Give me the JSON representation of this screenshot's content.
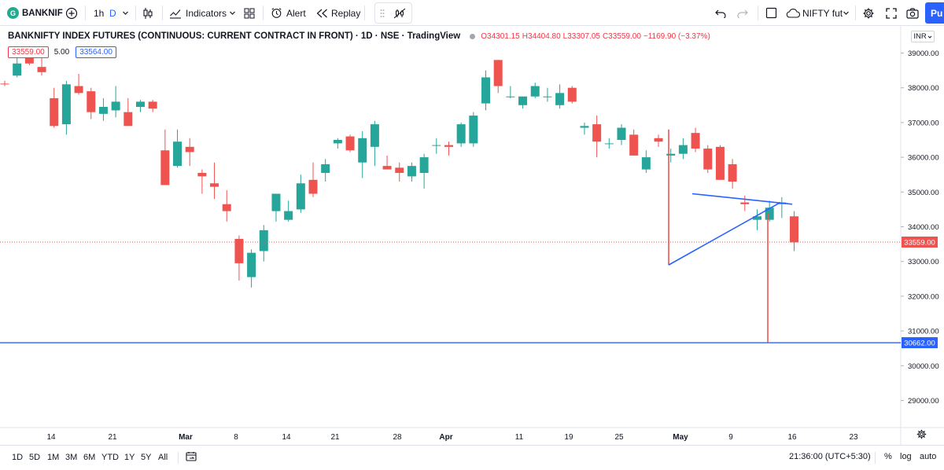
{
  "toolbar": {
    "symbol": "BANKNIF",
    "logo_letter": "G",
    "interval": "1h",
    "interval_type": "D",
    "indicators_label": "Indicators",
    "alert_label": "Alert",
    "replay_label": "Replay",
    "compare_symbol": "NIFTY fut",
    "publish_label": "Pu"
  },
  "legend": {
    "title": "BANKNIFTY INDEX FUTURES (CONTINUOUS: CURRENT CONTRACT IN FRONT) · 1D · NSE · TradingView",
    "open": "O34301.15",
    "high": "H34404.80",
    "low": "L33307.05",
    "close": "C33559.00",
    "change": "−1169.90 (−3.37%)",
    "sell_price": "33559.00",
    "spread": "5.00",
    "buy_price": "33564.00"
  },
  "currency": "INR",
  "bottom": {
    "ranges": [
      "1D",
      "5D",
      "1M",
      "3M",
      "6M",
      "YTD",
      "1Y",
      "5Y",
      "All"
    ],
    "clock": "21:36:00 (UTC+5:30)",
    "percent_label": "%",
    "log_label": "log",
    "auto_label": "auto"
  },
  "colors": {
    "up": "#26a69a",
    "down": "#ef5350",
    "drawing": "#2962ff",
    "accent": "#2962ff"
  },
  "chart_data": {
    "type": "candlestick",
    "symbol": "BANKNIFTY1!",
    "exchange": "NSE",
    "timeframe": "1D",
    "y_axis": {
      "ticks": [
        "39000.00",
        "38000.00",
        "37000.00",
        "36000.00",
        "35000.00",
        "34000.00",
        "33000.00",
        "32000.00",
        "31000.00",
        "30000.00",
        "29000.00"
      ],
      "range": [
        28400,
        39400
      ]
    },
    "x_axis": {
      "labels": [
        {
          "text": "14",
          "bold": false
        },
        {
          "text": "21",
          "bold": false
        },
        {
          "text": "Mar",
          "bold": true
        },
        {
          "text": "8",
          "bold": false
        },
        {
          "text": "14",
          "bold": false
        },
        {
          "text": "21",
          "bold": false
        },
        {
          "text": "28",
          "bold": false
        },
        {
          "text": "Apr",
          "bold": true
        },
        {
          "text": "11",
          "bold": false
        },
        {
          "text": "19",
          "bold": false
        },
        {
          "text": "25",
          "bold": false
        },
        {
          "text": "May",
          "bold": true
        },
        {
          "text": "9",
          "bold": false
        },
        {
          "text": "16",
          "bold": false
        },
        {
          "text": "23",
          "bold": false
        }
      ]
    },
    "candles": [
      {
        "o": 38120,
        "h": 38200,
        "l": 38050,
        "c": 38100
      },
      {
        "o": 38350,
        "h": 39000,
        "l": 38300,
        "c": 38700
      },
      {
        "o": 39050,
        "h": 39200,
        "l": 38650,
        "c": 38700
      },
      {
        "o": 38600,
        "h": 38850,
        "l": 38350,
        "c": 38450
      },
      {
        "o": 37700,
        "h": 38000,
        "l": 36850,
        "c": 36900
      },
      {
        "o": 36950,
        "h": 38200,
        "l": 36650,
        "c": 38100
      },
      {
        "o": 38050,
        "h": 38400,
        "l": 37800,
        "c": 37850
      },
      {
        "o": 37900,
        "h": 38000,
        "l": 37100,
        "c": 37300
      },
      {
        "o": 37250,
        "h": 37700,
        "l": 37050,
        "c": 37450
      },
      {
        "o": 37350,
        "h": 38050,
        "l": 37150,
        "c": 37600
      },
      {
        "o": 37300,
        "h": 37700,
        "l": 36900,
        "c": 36900
      },
      {
        "o": 37450,
        "h": 37650,
        "l": 37300,
        "c": 37600
      },
      {
        "o": 37600,
        "h": 37650,
        "l": 37300,
        "c": 37400
      },
      {
        "o": 36200,
        "h": 36800,
        "l": 35200,
        "c": 35200
      },
      {
        "o": 35750,
        "h": 36800,
        "l": 35700,
        "c": 36450
      },
      {
        "o": 36300,
        "h": 36550,
        "l": 35750,
        "c": 36150
      },
      {
        "o": 35550,
        "h": 35650,
        "l": 34950,
        "c": 35450
      },
      {
        "o": 35250,
        "h": 35850,
        "l": 34800,
        "c": 35150
      },
      {
        "o": 34650,
        "h": 35050,
        "l": 34150,
        "c": 34450
      },
      {
        "o": 33650,
        "h": 33750,
        "l": 32450,
        "c": 32950
      },
      {
        "o": 32550,
        "h": 33350,
        "l": 32250,
        "c": 33250
      },
      {
        "o": 33300,
        "h": 34050,
        "l": 33000,
        "c": 33900
      },
      {
        "o": 34450,
        "h": 34950,
        "l": 34150,
        "c": 34950
      },
      {
        "o": 34200,
        "h": 34750,
        "l": 34150,
        "c": 34450
      },
      {
        "o": 34500,
        "h": 35500,
        "l": 34400,
        "c": 35250
      },
      {
        "o": 35350,
        "h": 35850,
        "l": 34850,
        "c": 34950
      },
      {
        "o": 35550,
        "h": 35950,
        "l": 35300,
        "c": 35800
      },
      {
        "o": 36400,
        "h": 36550,
        "l": 36250,
        "c": 36500
      },
      {
        "o": 36600,
        "h": 36650,
        "l": 36150,
        "c": 36200
      },
      {
        "o": 35850,
        "h": 36750,
        "l": 35400,
        "c": 36550
      },
      {
        "o": 36300,
        "h": 37050,
        "l": 35750,
        "c": 36950
      },
      {
        "o": 35750,
        "h": 36050,
        "l": 35650,
        "c": 35650
      },
      {
        "o": 35700,
        "h": 35850,
        "l": 35300,
        "c": 35550
      },
      {
        "o": 35450,
        "h": 35850,
        "l": 35300,
        "c": 35750
      },
      {
        "o": 35550,
        "h": 36100,
        "l": 35100,
        "c": 36000
      },
      {
        "o": 36350,
        "h": 36550,
        "l": 36100,
        "c": 36350
      },
      {
        "o": 36350,
        "h": 36450,
        "l": 36050,
        "c": 36300
      },
      {
        "o": 36400,
        "h": 37000,
        "l": 36300,
        "c": 36950
      },
      {
        "o": 36400,
        "h": 37300,
        "l": 36300,
        "c": 37200
      },
      {
        "o": 37550,
        "h": 38500,
        "l": 37350,
        "c": 38300
      },
      {
        "o": 38800,
        "h": 38800,
        "l": 37850,
        "c": 38050
      },
      {
        "o": 37750,
        "h": 38050,
        "l": 37700,
        "c": 37750
      },
      {
        "o": 37500,
        "h": 37700,
        "l": 37400,
        "c": 37750
      },
      {
        "o": 37750,
        "h": 38150,
        "l": 37700,
        "c": 38050
      },
      {
        "o": 37750,
        "h": 38000,
        "l": 37600,
        "c": 37750
      },
      {
        "o": 37500,
        "h": 38100,
        "l": 37400,
        "c": 37850
      },
      {
        "o": 38000,
        "h": 38050,
        "l": 37550,
        "c": 37600
      },
      {
        "o": 36850,
        "h": 37000,
        "l": 36650,
        "c": 36900
      },
      {
        "o": 36950,
        "h": 37200,
        "l": 36000,
        "c": 36450
      },
      {
        "o": 36400,
        "h": 36550,
        "l": 36250,
        "c": 36400
      },
      {
        "o": 36500,
        "h": 36950,
        "l": 36350,
        "c": 36850
      },
      {
        "o": 36650,
        "h": 36800,
        "l": 36050,
        "c": 36050
      },
      {
        "o": 35650,
        "h": 36200,
        "l": 35550,
        "c": 36000
      },
      {
        "o": 36550,
        "h": 36650,
        "l": 36300,
        "c": 36450
      },
      {
        "o": 36050,
        "h": 36250,
        "l": 35850,
        "c": 36100
      },
      {
        "o": 36100,
        "h": 36550,
        "l": 35950,
        "c": 36350
      },
      {
        "o": 36700,
        "h": 36850,
        "l": 36150,
        "c": 36250
      },
      {
        "o": 36250,
        "h": 36350,
        "l": 35550,
        "c": 35650
      },
      {
        "o": 36300,
        "h": 36350,
        "l": 35450,
        "c": 35350
      },
      {
        "o": 35800,
        "h": 35950,
        "l": 35100,
        "c": 35300
      },
      {
        "o": 34700,
        "h": 34900,
        "l": 34450,
        "c": 34650
      },
      {
        "o": 34200,
        "h": 34500,
        "l": 33900,
        "c": 34300
      },
      {
        "o": 34200,
        "h": 34750,
        "l": 34150,
        "c": 34550
      },
      {
        "o": 34650,
        "h": 34850,
        "l": 34250,
        "c": 34700
      },
      {
        "o": 34300,
        "h": 34450,
        "l": 33300,
        "c": 33550
      }
    ],
    "last_price": "33559.00",
    "last_price_value": 33559,
    "horizontal_line": {
      "price": 30662,
      "label": "30662.00"
    },
    "drawings": [
      {
        "kind": "vertical-line",
        "price_from": 32900,
        "price_to": 36800
      },
      {
        "kind": "triangle-upper-line",
        "price_from": 34950,
        "price_to": 34650
      },
      {
        "kind": "triangle-lower-line",
        "price_from": 32900,
        "price_to": 34700
      },
      {
        "kind": "vertical-line",
        "price_from": 30662,
        "price_to": 34400
      }
    ]
  }
}
